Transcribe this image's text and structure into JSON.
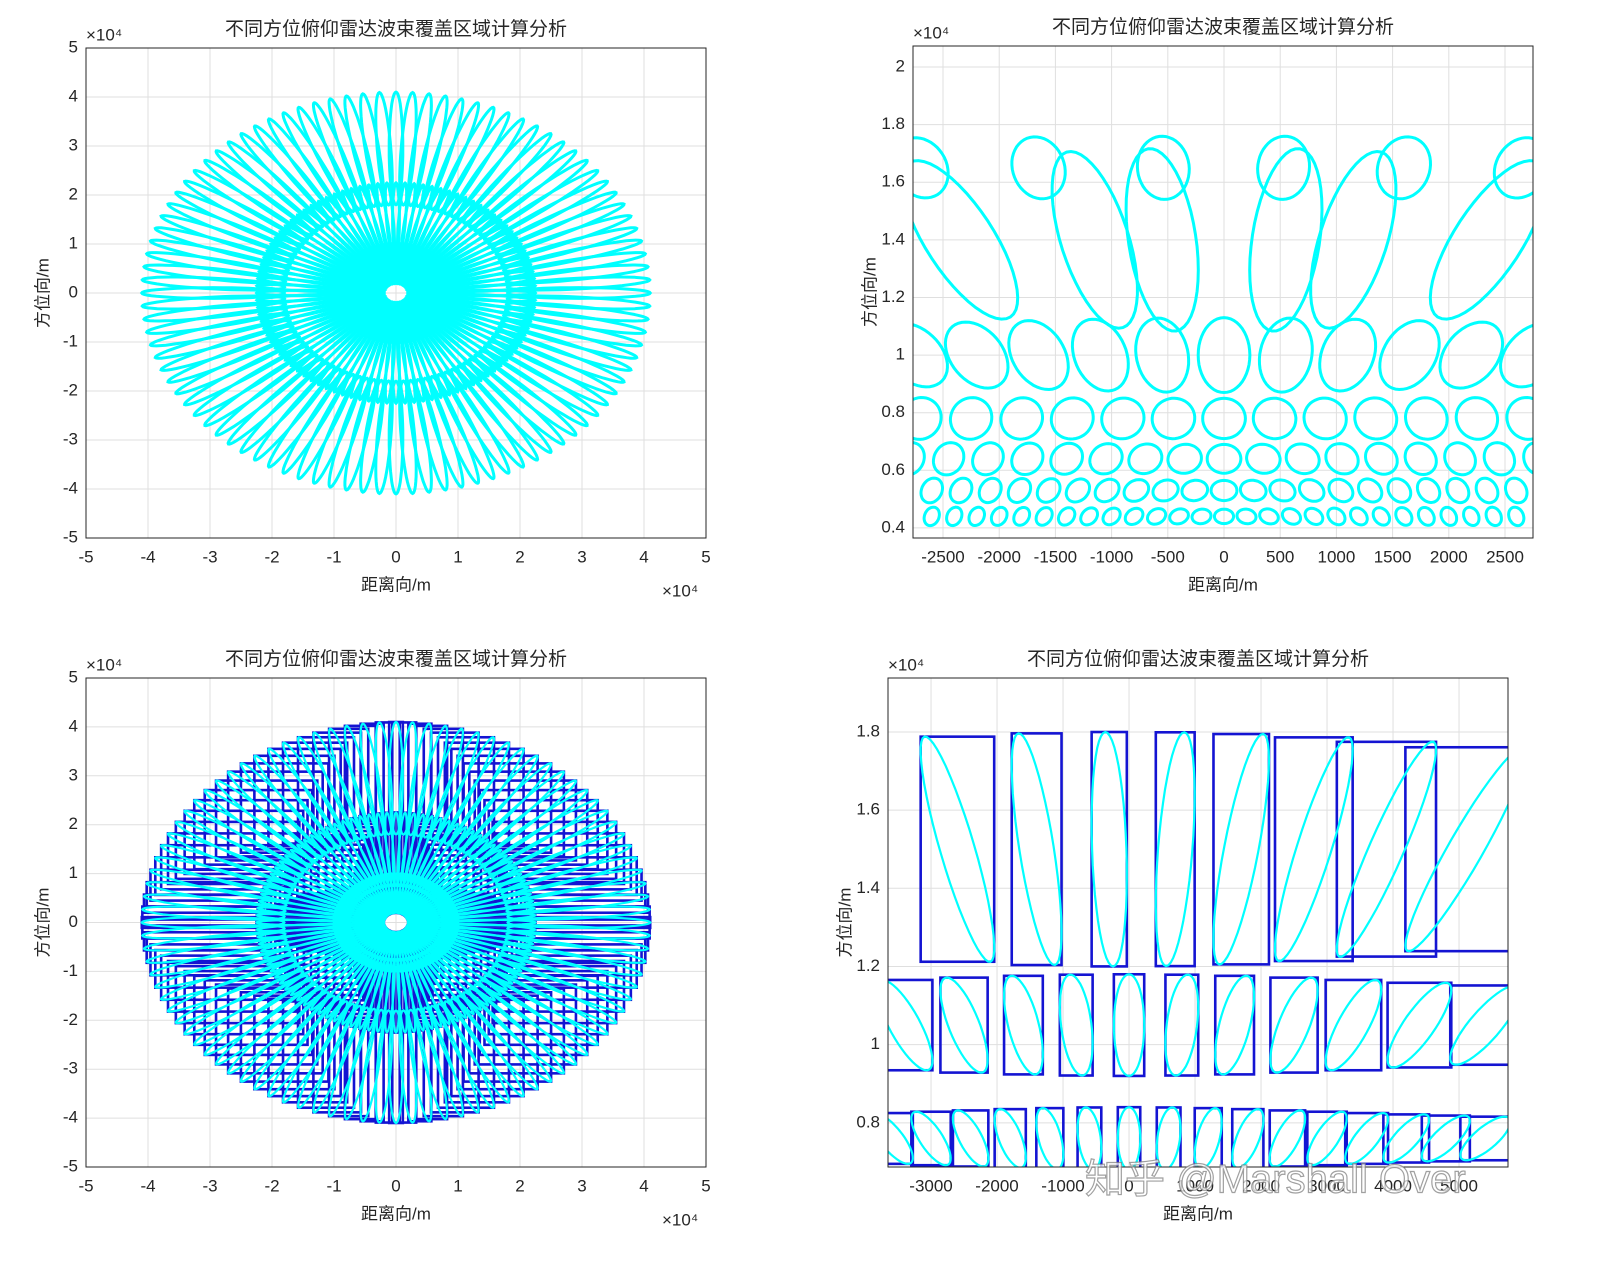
{
  "chart_data": [
    {
      "type": "rings",
      "title": "不同方位俯仰雷达波束覆盖区域计算分析",
      "xlabel": "距离向/m",
      "ylabel": "方位向/m",
      "x_scale_label": "×10⁴",
      "y_scale_label": "×10⁴",
      "xlim": [
        -5,
        5
      ],
      "ylim": [
        -5,
        5
      ],
      "xticks": [
        -5,
        -4,
        -3,
        -2,
        -1,
        0,
        1,
        2,
        3,
        4,
        5
      ],
      "yticks": [
        -5,
        -4,
        -3,
        -2,
        -1,
        0,
        1,
        2,
        3,
        4,
        5
      ],
      "grid": true,
      "line_color": "#00ffff",
      "rings": [
        {
          "range": 2.95,
          "count": 96,
          "length": 1.15,
          "width": 0.11
        },
        {
          "range": 1.5,
          "count": 96,
          "length": 0.75,
          "width": 0.055
        },
        {
          "range": 0.6,
          "count": 96,
          "length": 0.4,
          "width": 0.025
        }
      ]
    },
    {
      "type": "rows",
      "title": "不同方位俯仰雷达波束覆盖区域计算分析",
      "xlabel": "距离向/m",
      "ylabel": "方位向/m",
      "y_scale_label": "×10⁴",
      "xlim": [
        -2767,
        2749
      ],
      "ylim": [
        0.365,
        2.073
      ],
      "xticks": [
        -2500,
        -2000,
        -1500,
        -1000,
        -500,
        0,
        500,
        1000,
        1500,
        2000,
        2500
      ],
      "yticks": [
        0.4,
        0.6,
        0.8,
        1,
        1.2,
        1.4,
        1.6,
        1.8,
        2
      ],
      "grid": true,
      "line_color": "#00ffff",
      "rows": [
        {
          "y": 1.65,
          "rx": 230,
          "ry": 0.11,
          "x": [
            -2700,
            -1650,
            -540,
            530,
            1600,
            2650
          ]
        },
        {
          "y": 1.4,
          "rx": 300,
          "ry": 0.32,
          "x": [
            -2350,
            -1150,
            -550,
            550,
            1150,
            2350
          ]
        },
        {
          "y": 1.0,
          "rx": 230,
          "ry": 0.13,
          "x": [
            -2750,
            -2200,
            -1650,
            -1100,
            -550,
            0,
            550,
            1100,
            1650,
            2200,
            2750
          ]
        },
        {
          "y": 0.78,
          "rx": 190,
          "ry": 0.07,
          "x": [
            -2700,
            -2250,
            -1800,
            -1350,
            -900,
            -450,
            0,
            450,
            900,
            1350,
            1800,
            2250,
            2700
          ]
        },
        {
          "y": 0.64,
          "rx": 150,
          "ry": 0.05,
          "x": [
            -2800,
            -2450,
            -2100,
            -1750,
            -1400,
            -1050,
            -700,
            -350,
            0,
            350,
            700,
            1050,
            1400,
            1750,
            2100,
            2450,
            2800
          ]
        },
        {
          "y": 0.53,
          "rx": 115,
          "ry": 0.035,
          "x": [
            -2600,
            -2340,
            -2080,
            -1820,
            -1560,
            -1300,
            -1040,
            -780,
            -520,
            -260,
            0,
            260,
            520,
            780,
            1040,
            1300,
            1560,
            1820,
            2080,
            2340,
            2600
          ]
        },
        {
          "y": 0.44,
          "rx": 85,
          "ry": 0.025,
          "x": [
            -2600,
            -2400,
            -2200,
            -2000,
            -1800,
            -1600,
            -1400,
            -1200,
            -1000,
            -800,
            -600,
            -400,
            -200,
            0,
            200,
            400,
            600,
            800,
            1000,
            1200,
            1400,
            1600,
            1800,
            2000,
            2200,
            2400,
            2600
          ]
        }
      ]
    },
    {
      "type": "rings",
      "title": "不同方位俯仰雷达波束覆盖区域计算分析",
      "xlabel": "距离向/m",
      "ylabel": "方位向/m",
      "x_scale_label": "×10⁴",
      "y_scale_label": "×10⁴",
      "xlim": [
        -5,
        5
      ],
      "ylim": [
        -5,
        5
      ],
      "xticks": [
        -5,
        -4,
        -3,
        -2,
        -1,
        0,
        1,
        2,
        3,
        4,
        5
      ],
      "yticks": [
        -5,
        -4,
        -3,
        -2,
        -1,
        0,
        1,
        2,
        3,
        4,
        5
      ],
      "grid": true,
      "line_color": "#00ffff",
      "box_color": "#1414d2",
      "rings": [
        {
          "range": 2.95,
          "count": 96,
          "length": 1.15,
          "width": 0.11
        },
        {
          "range": 1.5,
          "count": 96,
          "length": 0.75,
          "width": 0.055
        },
        {
          "range": 0.6,
          "count": 96,
          "length": 0.4,
          "width": 0.025
        }
      ]
    },
    {
      "type": "rows",
      "title": "不同方位俯仰雷达波束覆盖区域计算分析",
      "xlabel": "距离向/m",
      "ylabel": "方位向/m",
      "y_scale_label": "×10⁴",
      "xlim": [
        -3652,
        5742
      ],
      "ylim": [
        0.687,
        1.938
      ],
      "xticks": [
        -3000,
        -2000,
        -1000,
        0,
        1000,
        2000,
        3000,
        4000,
        5000
      ],
      "yticks": [
        0.8,
        1,
        1.2,
        1.4,
        1.6,
        1.8
      ],
      "grid": true,
      "line_color": "#00ffff",
      "box_color": "#1414d2",
      "rows": [
        {
          "y": 1.5,
          "rx": 260,
          "ry": 0.3,
          "x": [
            -2600,
            -1400,
            -300,
            700,
            1700,
            2800,
            3900,
            5100
          ]
        },
        {
          "y": 1.05,
          "rx": 230,
          "ry": 0.13,
          "x": [
            -3400,
            -2500,
            -1600,
            -800,
            0,
            800,
            1600,
            2500,
            3400,
            4400,
            5400
          ]
        },
        {
          "y": 0.76,
          "rx": 170,
          "ry": 0.08,
          "x": [
            -3600,
            -3000,
            -2400,
            -1800,
            -1200,
            -600,
            0,
            600,
            1200,
            1800,
            2400,
            3000,
            3600,
            4200,
            4800,
            5400
          ]
        }
      ]
    }
  ],
  "watermark": "知乎 @Marshall Over"
}
